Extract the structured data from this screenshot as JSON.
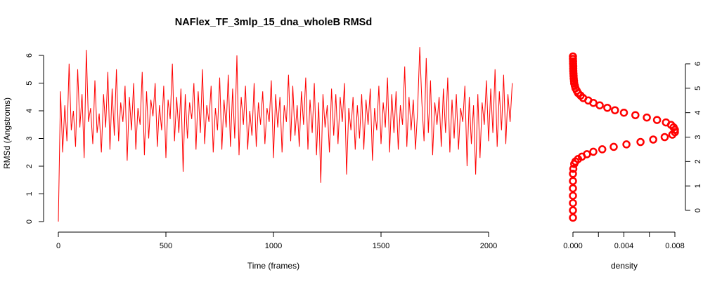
{
  "chart_data": [
    {
      "type": "line",
      "title": "NAFlex_TF_3mlp_15_dna_wholeB RMSd",
      "xlabel": "Time (frames)",
      "ylabel": "RMSd (Angstroms)",
      "xlim": [
        0,
        2000
      ],
      "ylim": [
        0,
        6.2
      ],
      "xticks": [
        0,
        500,
        1000,
        1500,
        2000
      ],
      "yticks": [
        0,
        1,
        2,
        3,
        4,
        5,
        6
      ],
      "series": [
        {
          "color": "#ff0000",
          "x_start": 0,
          "x_step": 10,
          "values": [
            0.0,
            4.7,
            2.5,
            4.2,
            2.9,
            5.7,
            3.3,
            4.0,
            2.7,
            5.5,
            3.4,
            4.6,
            2.3,
            6.2,
            3.6,
            4.1,
            2.8,
            5.1,
            3.2,
            3.9,
            2.5,
            4.6,
            3.4,
            5.4,
            2.6,
            4.8,
            3.1,
            5.5,
            2.9,
            4.3,
            3.6,
            4.9,
            2.2,
            4.5,
            3.3,
            5.0,
            2.6,
            4.1,
            3.5,
            5.4,
            2.4,
            4.7,
            3.0,
            4.4,
            3.8,
            5.0,
            2.7,
            4.2,
            3.3,
            4.9,
            2.3,
            4.4,
            3.7,
            5.7,
            2.9,
            4.5,
            3.2,
            4.8,
            1.8,
            4.6,
            3.0,
            4.3,
            3.7,
            5.0,
            2.6,
            4.7,
            3.2,
            5.5,
            2.8,
            4.2,
            3.6,
            4.9,
            2.5,
            4.1,
            3.3,
            5.2,
            2.6,
            4.4,
            3.4,
            5.3,
            2.7,
            4.8,
            3.0,
            6.0,
            2.4,
            4.5,
            3.5,
            4.9,
            2.6,
            4.0,
            3.1,
            5.0,
            2.7,
            4.3,
            3.5,
            4.7,
            2.8,
            4.1,
            3.6,
            5.1,
            2.3,
            4.6,
            3.4,
            4.5,
            2.5,
            4.2,
            3.6,
            5.3,
            2.9,
            4.9,
            3.1,
            4.2,
            2.7,
            4.7,
            3.5,
            5.2,
            2.6,
            4.4,
            3.2,
            5.0,
            2.4,
            4.3,
            1.4,
            4.6,
            3.4,
            4.2,
            2.5,
            4.8,
            3.1,
            4.6,
            2.8,
            4.5,
            3.6,
            5.0,
            1.7,
            4.1,
            3.3,
            4.5,
            2.6,
            4.2,
            3.0,
            4.6,
            2.6,
            4.4,
            3.5,
            4.8,
            2.2,
            4.1,
            3.3,
            4.9,
            2.8,
            4.3,
            3.4,
            5.2,
            2.5,
            4.6,
            3.2,
            4.7,
            2.6,
            4.2,
            3.5,
            5.6,
            2.7,
            4.5,
            3.3,
            4.4,
            2.6,
            4.0,
            6.3,
            4.3,
            2.9,
            5.9,
            3.2,
            5.1,
            2.4,
            4.3,
            3.5,
            4.5,
            2.7,
            4.8,
            3.2,
            5.2,
            2.5,
            4.4,
            3.0,
            4.6,
            2.6,
            4.1,
            3.6,
            4.9,
            2.0,
            4.5,
            2.8,
            4.2,
            1.7,
            4.6,
            2.3,
            4.3,
            3.5,
            5.1,
            2.9,
            4.8,
            3.2,
            5.5,
            2.7,
            4.7,
            3.3,
            5.3,
            2.8,
            4.6,
            3.6,
            5.0
          ]
        }
      ]
    },
    {
      "type": "scatter",
      "xlabel": "density",
      "ylabel": "",
      "xlim": [
        0,
        0.008
      ],
      "ylim": [
        0,
        6.2
      ],
      "xtick_labels": [
        "0.000",
        "0.004",
        "0.008"
      ],
      "xticks_minor": [
        0,
        0.002,
        0.004,
        0.006,
        0.008
      ],
      "yticks": [
        0,
        1,
        2,
        3,
        4,
        5,
        6
      ],
      "series": [
        {
          "color": "#ff0000",
          "y": [
            -0.3,
            0.0,
            0.3,
            0.6,
            0.9,
            1.2,
            1.5,
            1.7,
            1.9,
            2.0,
            2.1,
            2.2,
            2.3,
            2.4,
            2.5,
            2.6,
            2.7,
            2.8,
            2.9,
            3.0,
            3.1,
            3.2,
            3.3,
            3.4,
            3.5,
            3.6,
            3.7,
            3.8,
            3.9,
            4.0,
            4.1,
            4.2,
            4.3,
            4.4,
            4.5,
            4.6,
            4.7,
            4.8,
            4.9,
            5.0,
            5.1,
            5.2,
            5.3,
            5.4,
            5.5,
            5.6,
            5.7,
            5.8,
            5.9,
            6.0,
            6.1,
            6.2,
            6.3
          ],
          "x": [
            0.0,
            0.0,
            0.0,
            0.0,
            0.0,
            0.0,
            0.0,
            3e-05,
            0.0001,
            0.0002,
            0.0004,
            0.0007,
            0.0011,
            0.0016,
            0.0023,
            0.0032,
            0.0042,
            0.0053,
            0.0063,
            0.0072,
            0.0078,
            0.008,
            0.008,
            0.0079,
            0.0077,
            0.0073,
            0.0066,
            0.0058,
            0.0049,
            0.004,
            0.0033,
            0.0027,
            0.0021,
            0.0016,
            0.0012,
            0.0008,
            0.0006,
            0.0004,
            0.0003,
            0.0002,
            0.00015,
            0.0001,
            8e-05,
            6e-05,
            5e-05,
            4e-05,
            3e-05,
            2e-05,
            2e-05,
            1e-05,
            1e-05,
            0.0,
            0.0
          ]
        }
      ]
    }
  ]
}
